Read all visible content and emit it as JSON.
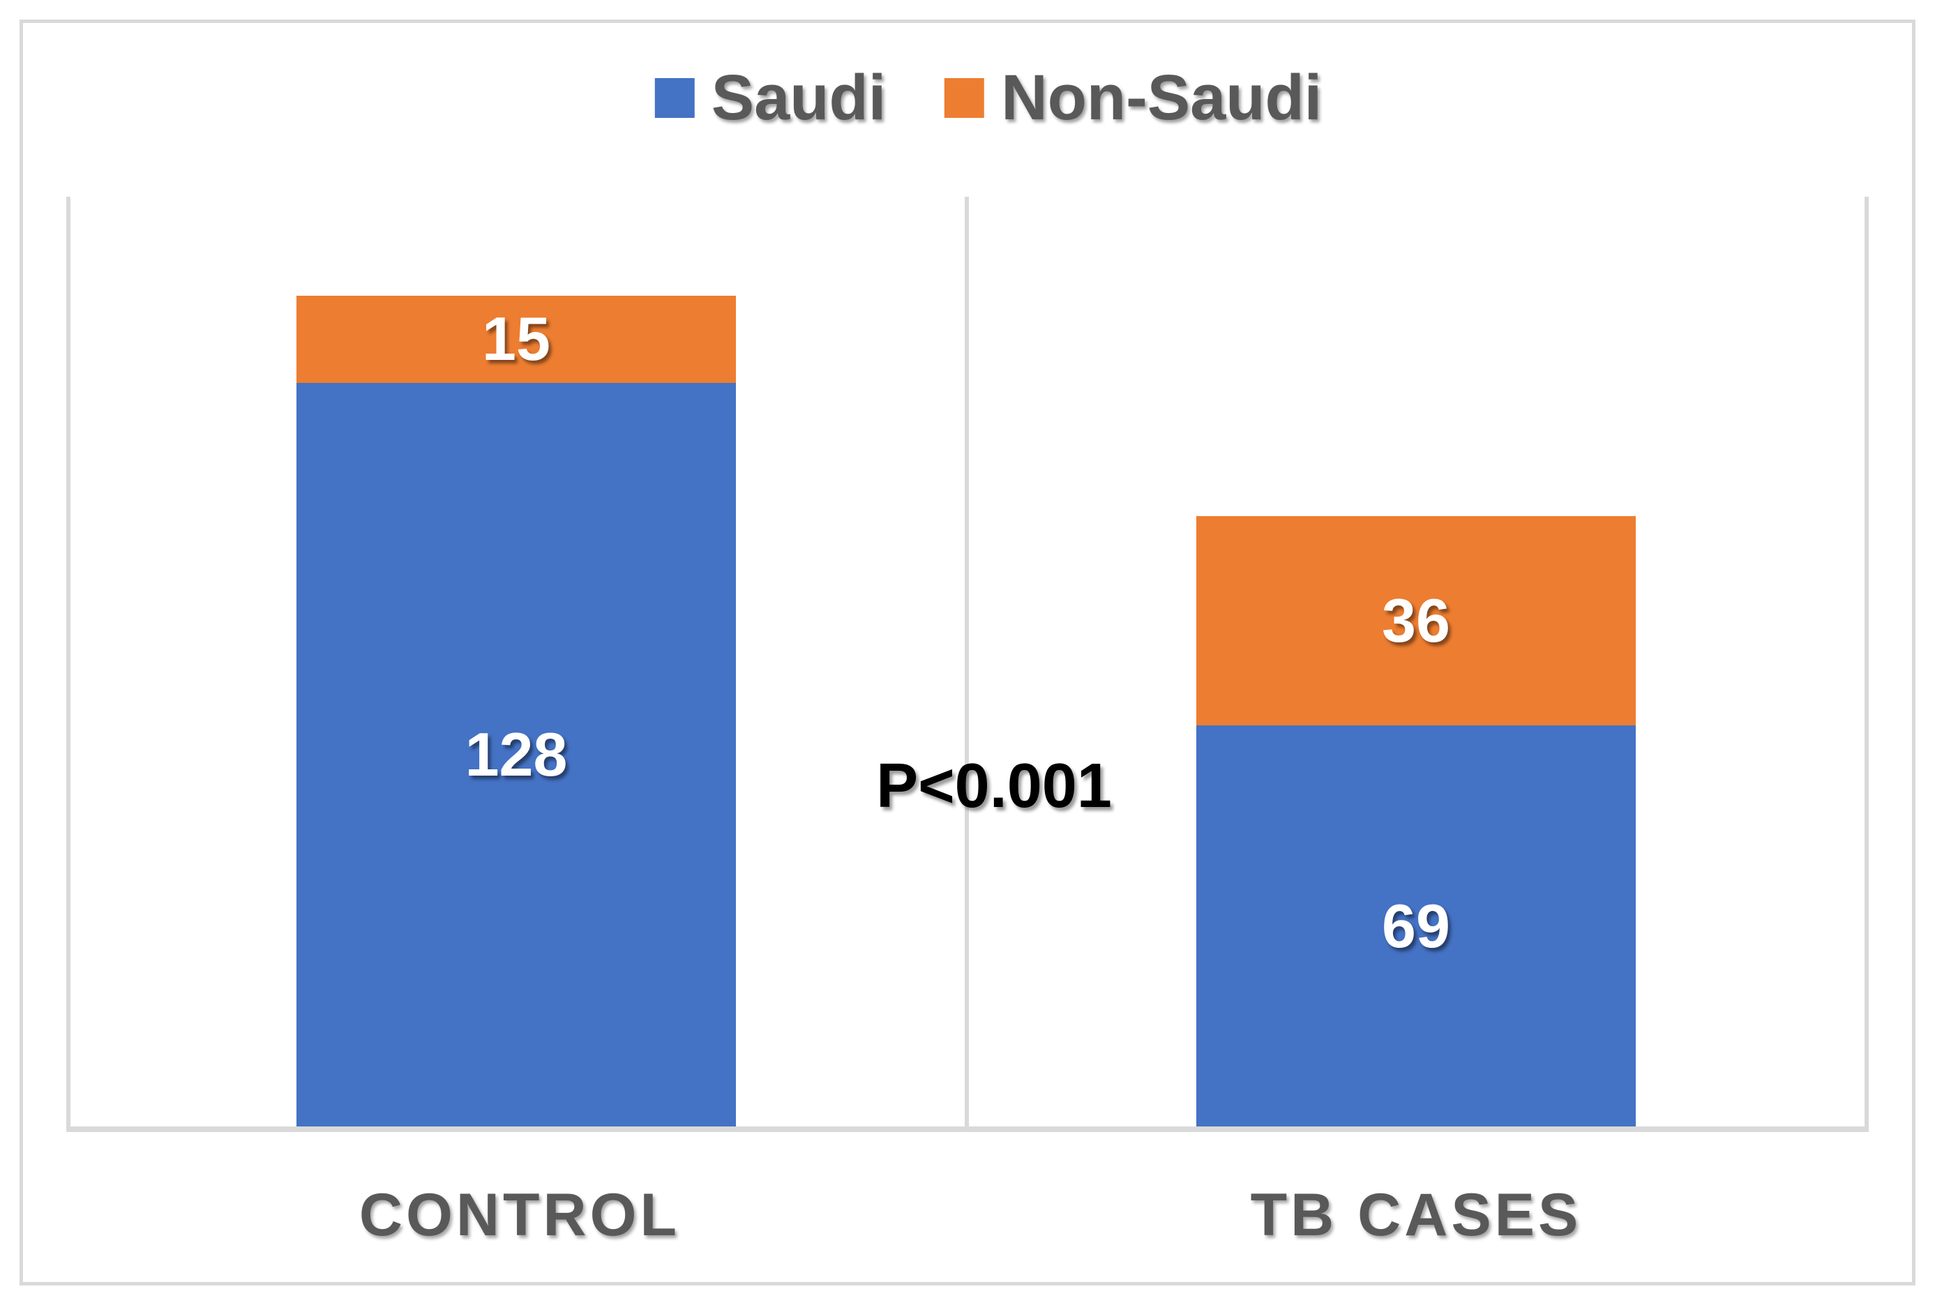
{
  "chart_data": {
    "type": "bar",
    "stacked": true,
    "title": "",
    "categories": [
      "CONTROL",
      "TB CASES"
    ],
    "series": [
      {
        "name": "Saudi",
        "color": "#4472C4",
        "values": [
          128,
          69
        ]
      },
      {
        "name": "Non-Saudi",
        "color": "#ED7D31",
        "values": [
          15,
          36
        ]
      }
    ],
    "annotation": "P<0.001",
    "xlabel": "",
    "ylabel": "",
    "ylim": [
      0,
      160
    ],
    "grid": "vertical-category-separators-only",
    "legend_position": "top-center"
  },
  "colors": {
    "saudi_blue": "#4472C4",
    "non_saudi_orange": "#ED7D31",
    "gridline_gray": "#D9D9D9",
    "axis_text_gray": "#595959",
    "data_label_white": "#FFFFFF",
    "annotation_black": "#000000"
  }
}
